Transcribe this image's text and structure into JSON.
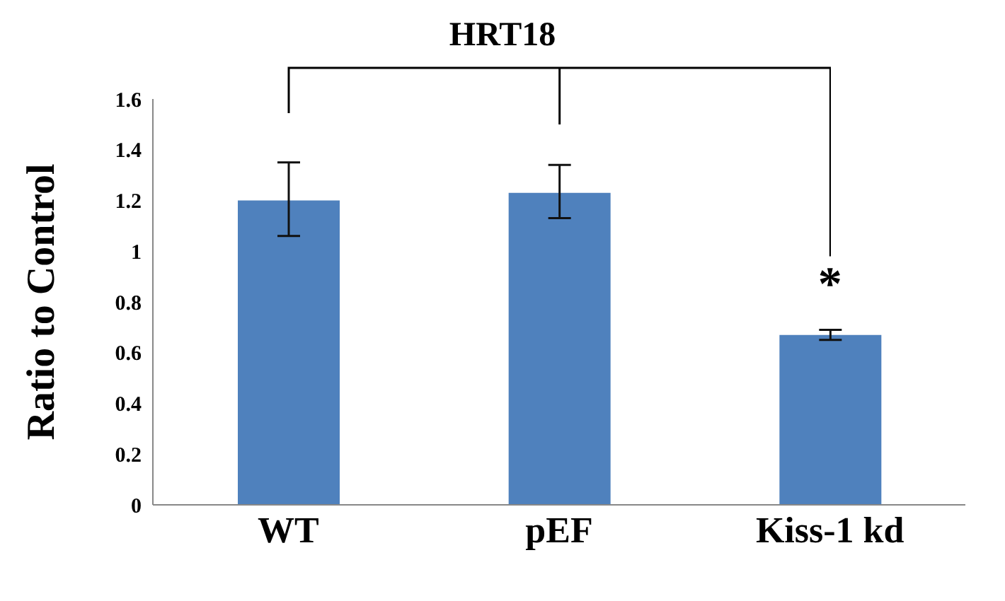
{
  "chart_data": {
    "type": "bar",
    "title": "HRT18",
    "ylabel": "Ratio to Control",
    "categories": [
      "WT",
      "pEF",
      "Kiss-1 kd"
    ],
    "values": [
      1.2,
      1.23,
      0.67
    ],
    "errors": [
      [
        1.06,
        1.35
      ],
      [
        1.13,
        1.34
      ],
      [
        0.65,
        0.69
      ]
    ],
    "color": "#4f81bd",
    "ylim": [
      0,
      1.6
    ],
    "yticks": [
      0,
      0.2,
      0.4,
      0.6,
      0.8,
      1,
      1.2,
      1.4,
      1.6
    ],
    "annotations": [
      "*"
    ],
    "grid": false
  }
}
